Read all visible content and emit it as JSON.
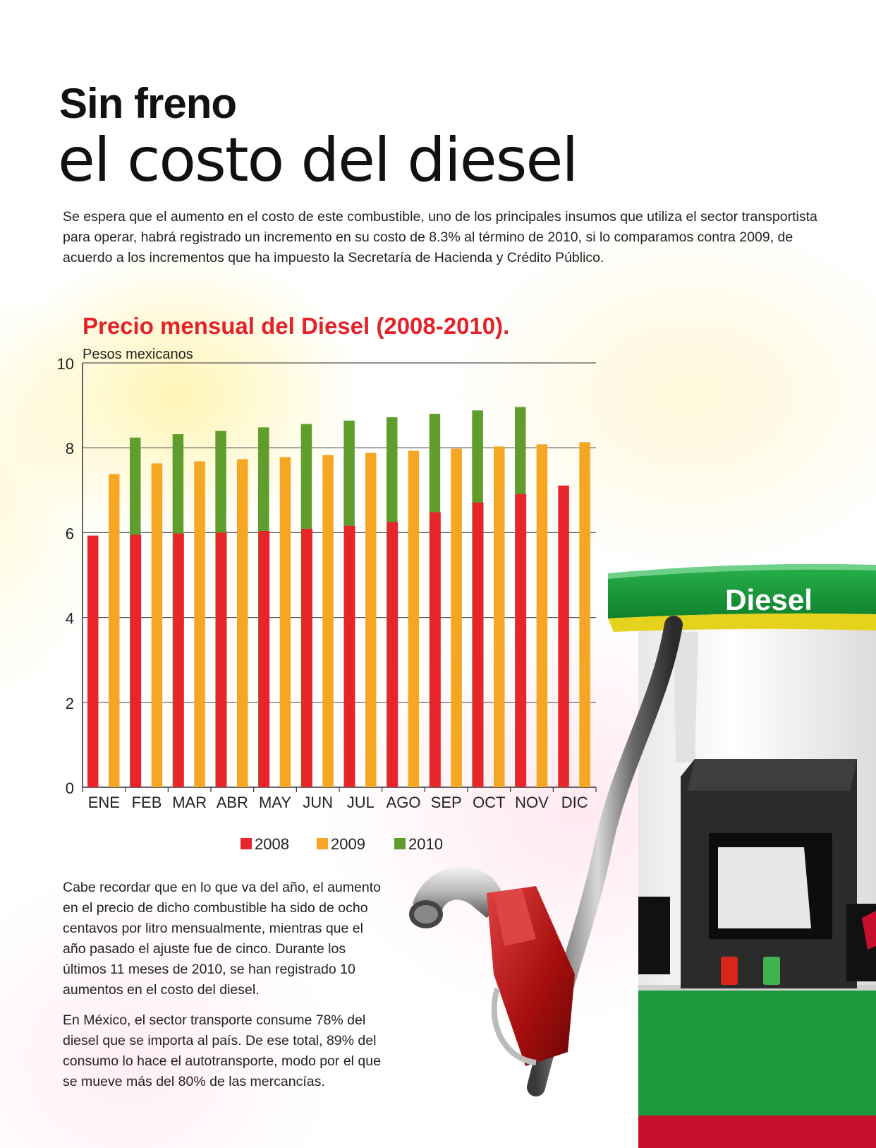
{
  "article": {
    "title_bold": "Sin freno",
    "title_light": "el costo del diesel",
    "intro": "Se espera que el aumento en el costo de este combustible, uno de los principales insumos que utiliza el sector transportista para operar, habrá registrado un incremento en su costo de 8.3% al término de 2010, si lo comparamos contra 2009, de acuerdo a los incrementos que ha impuesto la Secretaría de Hacienda y Crédito Público.",
    "body_1": "Cabe recordar que en lo que va del año, el aumento en el precio de dicho combustible ha sido de ocho centavos por litro mensualmente, mientras que el año pasado el ajuste fue de cinco. Durante los últimos 11 meses de 2010, se han registrado 10 aumentos en el costo del diesel.",
    "body_2": "En México, el sector transporte consume 78% del diesel que se importa al país. De ese total, 89% del consumo lo hace el autotransporte, modo por el que se mueve más del 80% de las mercancías."
  },
  "pump": {
    "sign_label": "Diesel",
    "colors": {
      "green": "#1a9a3c",
      "red": "#c8102e",
      "yellow": "#e8d21a"
    }
  },
  "chart_data": {
    "type": "bar",
    "title": "Precio mensual del Diesel (2008-2010).",
    "ylabel": "Pesos mexicanos",
    "xlabel": "",
    "ylim": [
      0,
      10
    ],
    "yticks": [
      0,
      2,
      4,
      6,
      8,
      10
    ],
    "grid": true,
    "legend_position": "bottom",
    "categories": [
      "ENE",
      "FEB",
      "MAR",
      "ABR",
      "MAY",
      "JUN",
      "JUL",
      "AGO",
      "SEP",
      "OCT",
      "NOV",
      "DIC"
    ],
    "series": [
      {
        "name": "2008",
        "color": "#e8252a",
        "values": [
          5.93,
          5.95,
          5.98,
          6.0,
          6.04,
          6.09,
          6.16,
          6.25,
          6.48,
          6.71,
          6.91,
          7.11
        ]
      },
      {
        "name": "2009",
        "color": "#f5a623",
        "values": [
          7.38,
          7.63,
          7.68,
          7.73,
          7.78,
          7.83,
          7.88,
          7.93,
          7.98,
          8.03,
          8.08,
          8.13
        ]
      },
      {
        "name": "2010",
        "color": "#5f9e2c",
        "values": [
          8.24,
          8.32,
          8.4,
          8.48,
          8.56,
          8.64,
          8.72,
          8.8,
          8.88,
          8.96,
          null,
          null
        ]
      }
    ]
  }
}
